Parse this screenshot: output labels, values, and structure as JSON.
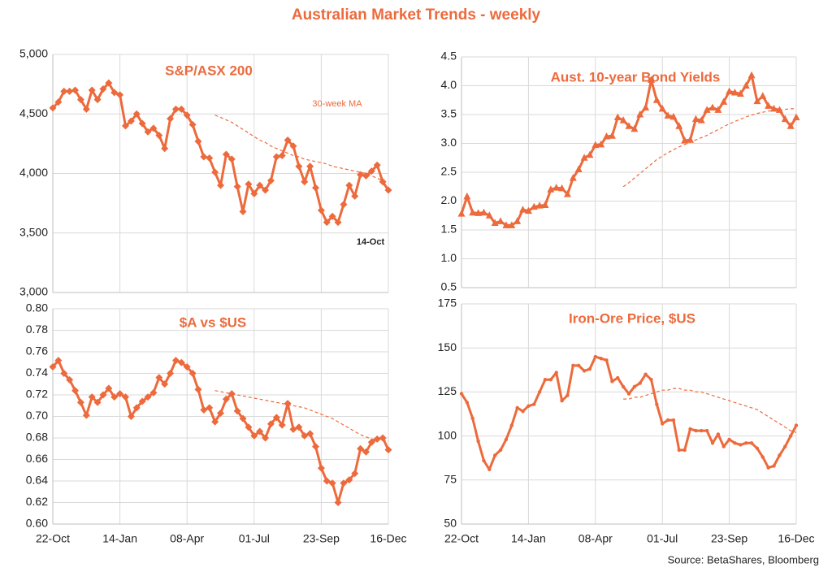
{
  "title": "Australian Market Trends - weekly",
  "source": "Source: BetaShares, Bloomberg",
  "chart_data": [
    {
      "type": "line",
      "title": "S&P/ASX 200",
      "marker": "diamond",
      "ylim": [
        3000,
        5000
      ],
      "yticks": [
        {
          "value": 3000,
          "label": "3,000"
        },
        {
          "value": 3500,
          "label": "3,500"
        },
        {
          "value": 4000,
          "label": "4,000"
        },
        {
          "value": 4500,
          "label": "4,500"
        },
        {
          "value": 5000,
          "label": "5,000"
        }
      ],
      "annotations": [
        "30-week MA",
        "14-Oct"
      ],
      "series": [
        {
          "color": "#ec6a3c",
          "values": [
            4550,
            4600,
            4690,
            4690,
            4700,
            4620,
            4540,
            4700,
            4620,
            4710,
            4760,
            4680,
            4660,
            4400,
            4440,
            4500,
            4420,
            4350,
            4380,
            4320,
            4210,
            4460,
            4540,
            4540,
            4490,
            4410,
            4270,
            4140,
            4130,
            4010,
            3900,
            4160,
            4120,
            3890,
            3680,
            3910,
            3830,
            3900,
            3860,
            3940,
            4140,
            4150,
            4280,
            4230,
            4060,
            3930,
            4060,
            3880,
            3690,
            3590,
            3640,
            3590,
            3740,
            3900,
            3810,
            3990,
            3980,
            4020,
            4070,
            3930,
            3860
          ]
        },
        {
          "color": "#ec6a3c",
          "dash": true,
          "values": [
            null,
            null,
            null,
            null,
            null,
            null,
            null,
            null,
            null,
            null,
            null,
            null,
            null,
            null,
            null,
            null,
            null,
            null,
            null,
            null,
            null,
            null,
            null,
            null,
            null,
            null,
            null,
            null,
            null,
            4490,
            4470,
            4450,
            4430,
            4400,
            4370,
            4340,
            4310,
            4280,
            4260,
            4230,
            4210,
            4190,
            4170,
            4150,
            4140,
            4120,
            4110,
            4100,
            4090,
            4080,
            4060,
            4050,
            4040,
            4030,
            4020,
            4010,
            4000,
            3980,
            3960,
            3940,
            3920
          ]
        }
      ]
    },
    {
      "type": "line",
      "title": "Aust. 10-year Bond Yields",
      "marker": "triangle",
      "ylim": [
        0.5,
        4.5
      ],
      "yticks": [
        0.5,
        {
          "value": 1,
          "label": "1.0"
        },
        1.5,
        {
          "value": 2,
          "label": "2.0"
        },
        2.5,
        {
          "value": 3,
          "label": "3.0"
        },
        3.5,
        {
          "value": 4,
          "label": "4.0"
        },
        4.5
      ],
      "series": [
        {
          "color": "#ec6a3c",
          "values": [
            1.78,
            2.08,
            1.8,
            1.79,
            1.8,
            1.75,
            1.62,
            1.65,
            1.58,
            1.58,
            1.65,
            1.85,
            1.83,
            1.9,
            1.92,
            1.93,
            2.2,
            2.23,
            2.22,
            2.12,
            2.4,
            2.55,
            2.75,
            2.8,
            2.97,
            2.98,
            3.12,
            3.13,
            3.45,
            3.4,
            3.3,
            3.25,
            3.5,
            3.62,
            4.1,
            3.75,
            3.6,
            3.48,
            3.46,
            3.3,
            3.05,
            3.06,
            3.42,
            3.4,
            3.58,
            3.62,
            3.58,
            3.72,
            3.9,
            3.88,
            3.86,
            4.0,
            4.18,
            3.73,
            3.82,
            3.65,
            3.6,
            3.58,
            3.42,
            3.3,
            3.45
          ]
        },
        {
          "color": "#ec6a3c",
          "dash": true,
          "values": [
            null,
            null,
            null,
            null,
            null,
            null,
            null,
            null,
            null,
            null,
            null,
            null,
            null,
            null,
            null,
            null,
            null,
            null,
            null,
            null,
            null,
            null,
            null,
            null,
            null,
            null,
            null,
            null,
            null,
            2.25,
            2.32,
            2.4,
            2.48,
            2.56,
            2.64,
            2.72,
            2.78,
            2.84,
            2.89,
            2.94,
            2.98,
            3.02,
            3.06,
            3.1,
            3.14,
            3.19,
            3.24,
            3.29,
            3.34,
            3.38,
            3.42,
            3.46,
            3.49,
            3.52,
            3.54,
            3.56,
            3.57,
            3.58,
            3.59,
            3.6,
            3.6
          ]
        }
      ]
    },
    {
      "type": "line",
      "title": "$A vs $US",
      "marker": "diamond",
      "ylim": [
        0.6,
        0.8
      ],
      "yticks": [
        {
          "value": 0.6,
          "label": "0.60"
        },
        0.62,
        0.64,
        0.66,
        0.68,
        {
          "value": 0.7,
          "label": "0.70"
        },
        0.72,
        0.74,
        0.76,
        0.78,
        {
          "value": 0.8,
          "label": "0.80"
        }
      ],
      "categories": [
        "22-Oct",
        null,
        null,
        null,
        null,
        null,
        null,
        null,
        null,
        null,
        null,
        null,
        "14-Jan",
        null,
        null,
        null,
        null,
        null,
        null,
        null,
        null,
        null,
        null,
        null,
        "08-Apr",
        null,
        null,
        null,
        null,
        null,
        null,
        null,
        null,
        null,
        null,
        null,
        "01-Jul",
        null,
        null,
        null,
        null,
        null,
        null,
        null,
        null,
        null,
        null,
        null,
        "23-Sep",
        null,
        null,
        null,
        null,
        null,
        null,
        null,
        null,
        null,
        null,
        null,
        "16-Dec"
      ],
      "series": [
        {
          "color": "#ec6a3c",
          "values": [
            0.746,
            0.752,
            0.74,
            0.734,
            0.724,
            0.713,
            0.701,
            0.718,
            0.713,
            0.72,
            0.726,
            0.718,
            0.721,
            0.718,
            0.7,
            0.708,
            0.714,
            0.718,
            0.722,
            0.736,
            0.73,
            0.74,
            0.752,
            0.75,
            0.746,
            0.74,
            0.725,
            0.706,
            0.708,
            0.695,
            0.703,
            0.716,
            0.721,
            0.705,
            0.698,
            0.69,
            0.682,
            0.686,
            0.68,
            0.693,
            0.699,
            0.692,
            0.712,
            0.688,
            0.69,
            0.682,
            0.684,
            0.672,
            0.652,
            0.64,
            0.638,
            0.62,
            0.638,
            0.641,
            0.647,
            0.67,
            0.667,
            0.676,
            0.679,
            0.68,
            0.669
          ]
        },
        {
          "color": "#ec6a3c",
          "dash": true,
          "values": [
            null,
            null,
            null,
            null,
            null,
            null,
            null,
            null,
            null,
            null,
            null,
            null,
            null,
            null,
            null,
            null,
            null,
            null,
            null,
            null,
            null,
            null,
            null,
            null,
            null,
            null,
            null,
            null,
            null,
            0.724,
            0.723,
            0.722,
            0.721,
            0.72,
            0.719,
            0.718,
            0.717,
            0.716,
            0.715,
            0.714,
            0.713,
            0.712,
            0.711,
            0.71,
            0.709,
            0.708,
            0.706,
            0.704,
            0.702,
            0.7,
            0.698,
            0.695,
            0.692,
            0.689,
            0.686,
            0.683,
            0.681,
            0.679,
            0.678,
            0.678,
            0.677
          ]
        }
      ]
    },
    {
      "type": "line",
      "title": "Iron-Ore Price, $US",
      "marker": "circle",
      "ylim": [
        50,
        175
      ],
      "yticks": [
        50,
        75,
        100,
        125,
        150,
        175
      ],
      "categories": [
        "22-Oct",
        null,
        null,
        null,
        null,
        null,
        null,
        null,
        null,
        null,
        null,
        null,
        "14-Jan",
        null,
        null,
        null,
        null,
        null,
        null,
        null,
        null,
        null,
        null,
        null,
        "08-Apr",
        null,
        null,
        null,
        null,
        null,
        null,
        null,
        null,
        null,
        null,
        null,
        "01-Jul",
        null,
        null,
        null,
        null,
        null,
        null,
        null,
        null,
        null,
        null,
        null,
        "23-Sep",
        null,
        null,
        null,
        null,
        null,
        null,
        null,
        null,
        null,
        null,
        null,
        "16-Dec"
      ],
      "series": [
        {
          "color": "#ec6a3c",
          "values": [
            124,
            119,
            110,
            97,
            86,
            81,
            89,
            92,
            98,
            106,
            116,
            114,
            117,
            118,
            125,
            132,
            132,
            136,
            120,
            123,
            140,
            140,
            137,
            138,
            145,
            144,
            143,
            131,
            133,
            128,
            124,
            128,
            130,
            135,
            132,
            118,
            107,
            109,
            109,
            92,
            92,
            104,
            103,
            103,
            103,
            96,
            101,
            94,
            98,
            96,
            95,
            96,
            96,
            93,
            88,
            82,
            83,
            89,
            94,
            100,
            106
          ]
        },
        {
          "color": "#ec6a3c",
          "dash": true,
          "values": [
            null,
            null,
            null,
            null,
            null,
            null,
            null,
            null,
            null,
            null,
            null,
            null,
            null,
            null,
            null,
            null,
            null,
            null,
            null,
            null,
            null,
            null,
            null,
            null,
            null,
            null,
            null,
            null,
            null,
            121,
            121,
            122,
            122,
            123,
            124,
            125,
            126,
            126,
            127,
            127,
            126,
            126,
            125,
            125,
            124,
            123,
            122,
            121,
            120,
            119,
            118,
            117,
            116,
            115,
            113,
            111,
            109,
            107,
            105,
            103,
            102
          ]
        }
      ]
    }
  ]
}
